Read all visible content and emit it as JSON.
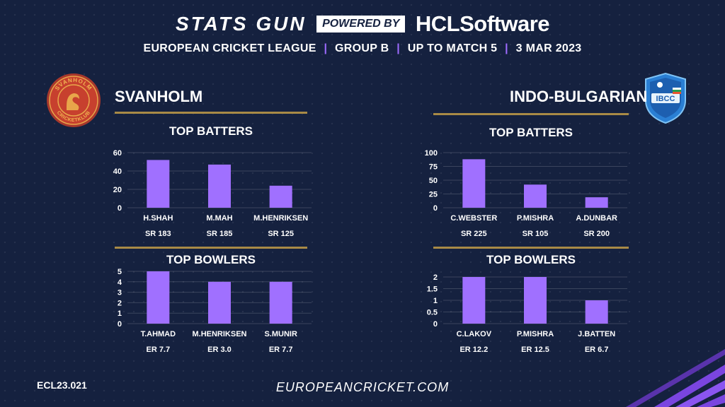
{
  "header": {
    "brand_main": "STATS GUN",
    "brand_powered": "POWERED BY",
    "brand_sponsor_prefix": "HCL",
    "brand_sponsor_suffix": "Software",
    "subtitle_parts": [
      "EUROPEAN CRICKET LEAGUE",
      "GROUP B",
      "UP TO MATCH  5",
      "3 MAR 2023"
    ]
  },
  "teams": {
    "left": {
      "name": "SVANHOLM",
      "logo_text_top": "SVANHOLM",
      "logo_text_bottom": "CRICKETKLUB"
    },
    "right": {
      "name": "INDO-BULGARIAN",
      "logo_text": "IBCC"
    }
  },
  "sections": {
    "batters_title": "TOP BATTERS",
    "bowlers_title": "TOP BOWLERS"
  },
  "footer": {
    "code": "ECL23.021",
    "url": "EUROPEANCRICKET.COM"
  },
  "colors": {
    "bar": "#a070ff",
    "rule": "#a88a46",
    "background": "#15213f",
    "accent": "#9d6bff"
  },
  "chart_data": [
    {
      "type": "bar",
      "title": "TOP BATTERS",
      "team": "SVANHOLM",
      "categories": [
        "H.SHAH",
        "M.MAH",
        "M.HENRIKSEN"
      ],
      "values": [
        52,
        47,
        24
      ],
      "sublabels": [
        "SR 183",
        "SR 185",
        "SR 125"
      ],
      "yticks": [
        "0",
        "20",
        "40",
        "60"
      ],
      "ylim": [
        0,
        60
      ],
      "grid": true
    },
    {
      "type": "bar",
      "title": "TOP BOWLERS",
      "team": "SVANHOLM",
      "categories": [
        "T.AHMAD",
        "M.HENRIKSEN",
        "S.MUNIR"
      ],
      "values": [
        5,
        4,
        4
      ],
      "sublabels": [
        "ER  7.7",
        "ER 3.0",
        "ER 7.7"
      ],
      "yticks": [
        "0",
        "1",
        "2",
        "3",
        "4",
        "5"
      ],
      "ylim": [
        0,
        5
      ],
      "grid": true
    },
    {
      "type": "bar",
      "title": "TOP BATTERS",
      "team": "INDO-BULGARIAN",
      "categories": [
        "C.WEBSTER",
        "P.MISHRA",
        "A.DUNBAR"
      ],
      "values": [
        88,
        42,
        19
      ],
      "sublabels": [
        "SR 225",
        "SR 105",
        "SR 200"
      ],
      "yticks": [
        "0",
        "25",
        "50",
        "75",
        "100"
      ],
      "ylim": [
        0,
        100
      ],
      "grid": true
    },
    {
      "type": "bar",
      "title": "TOP BOWLERS",
      "team": "INDO-BULGARIAN",
      "categories": [
        "C.LAKOV",
        "P.MISHRA",
        "J.BATTEN"
      ],
      "values": [
        2,
        2,
        1
      ],
      "sublabels": [
        "ER 12.2",
        "ER 12.5",
        "ER 6.7"
      ],
      "yticks": [
        "0",
        "0.5",
        "1",
        "1.5",
        "2"
      ],
      "ylim": [
        0,
        2
      ],
      "grid": true
    }
  ]
}
